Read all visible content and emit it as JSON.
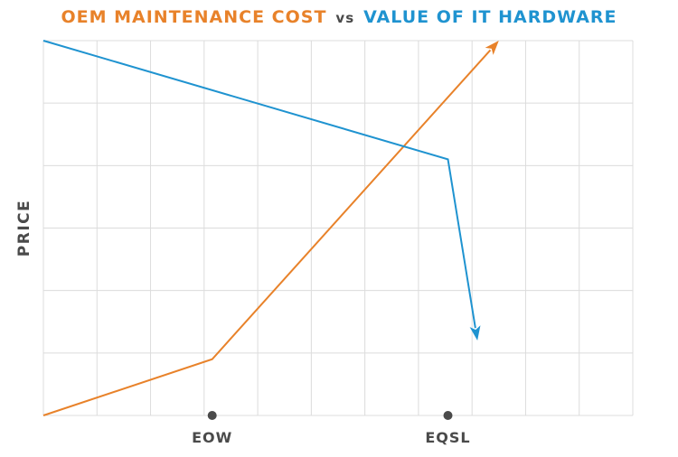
{
  "title": {
    "part1": "OEM MAINTENANCE COST",
    "vs": "vs",
    "part2": "VALUE OF IT HARDWARE"
  },
  "colors": {
    "oem": "#e8822a",
    "value": "#1f93d0",
    "grid": "#dcdcdc",
    "text": "#4a4a4a"
  },
  "chart_data": {
    "type": "line",
    "ylabel": "PRICE",
    "xlabel": "",
    "xlim": [
      0,
      11
    ],
    "ylim": [
      0,
      6
    ],
    "grid": true,
    "x_markers": [
      {
        "label": "EOW",
        "x": 3.15
      },
      {
        "label": "EQSL",
        "x": 7.55
      }
    ],
    "series": [
      {
        "name": "OEM MAINTENANCE COST",
        "color_key": "oem",
        "points": [
          [
            0,
            0
          ],
          [
            3.15,
            0.9
          ],
          [
            8.5,
            6.0
          ]
        ],
        "arrow": true
      },
      {
        "name": "VALUE OF IT HARDWARE",
        "color_key": "value",
        "points": [
          [
            0,
            6.0
          ],
          [
            7.55,
            4.1
          ],
          [
            8.1,
            1.2
          ]
        ],
        "arrow": true
      }
    ]
  }
}
